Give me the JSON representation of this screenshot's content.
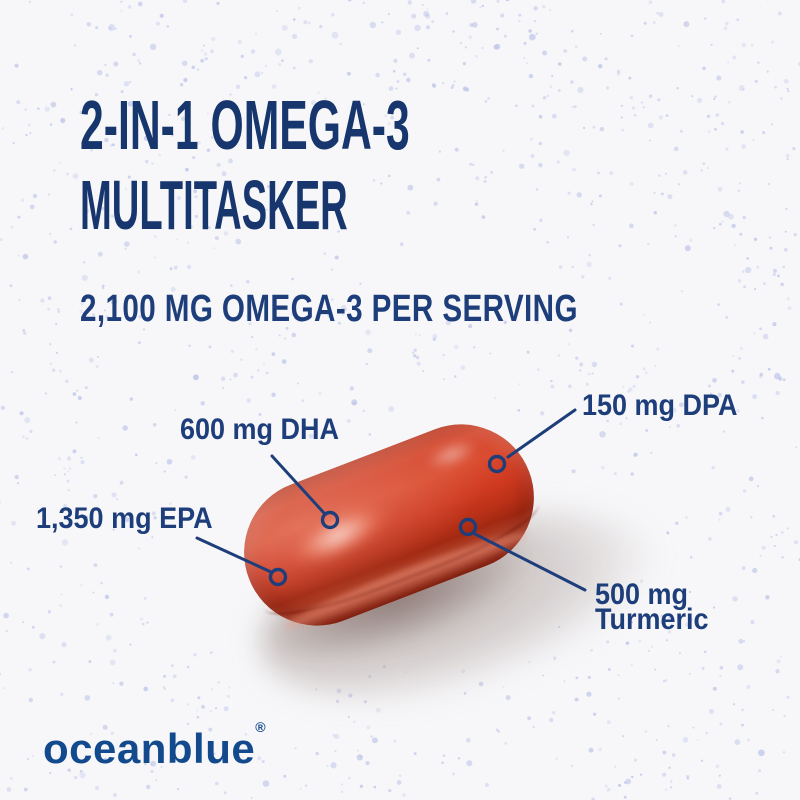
{
  "header": {
    "title_line1": "2-IN-1 OMEGA-3",
    "title_line2": "MULTITASKER",
    "subtitle": "2,100 MG OMEGA-3 PER SERVING"
  },
  "callouts": [
    {
      "id": "epa",
      "label": "1,350 mg EPA"
    },
    {
      "id": "dha",
      "label": "600 mg DHA"
    },
    {
      "id": "dpa",
      "label": "150 mg DPA"
    },
    {
      "id": "turmeric",
      "label": "500 mg",
      "label_line2": "Turmeric"
    }
  ],
  "product": {
    "description": "red softgel capsule"
  },
  "brand": {
    "name": "oceanblue",
    "registered_mark": "®"
  },
  "colors": {
    "background": "#f7f7f9",
    "dot_pattern": "#bcc4e8",
    "headline_navy": "#16366d",
    "callout_navy": "#1d3e7a",
    "logo_blue": "#134a8e",
    "capsule_red": "#cf3a21"
  }
}
